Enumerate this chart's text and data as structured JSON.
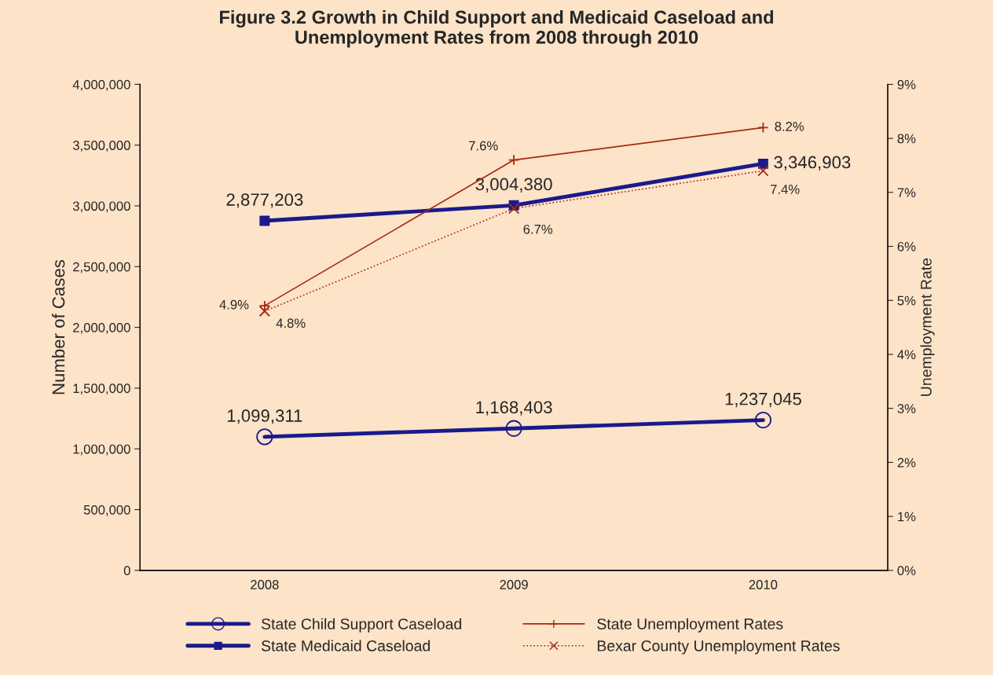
{
  "chart_data": {
    "type": "line",
    "title": "Figure 3.2 Growth in Child Support and Medicaid Caseload and\nUnemployment Rates from 2008 through 2010",
    "ylabel": "Number of Cases",
    "y2label": "Unemployment Rate",
    "categories": [
      "2008",
      "2009",
      "2010"
    ],
    "series": [
      {
        "name": "State Child Support Caseload",
        "color": "#1a1a8c",
        "marker": "circle",
        "values": [
          1099311,
          1168403,
          1237045
        ],
        "value_labels": [
          "1,099,311",
          "1,168,403",
          "1,237,045"
        ]
      },
      {
        "name": "State Medicaid Caseload",
        "color": "#1a1a8c",
        "marker": "square",
        "values": [
          2877203,
          3004380,
          3346903
        ],
        "value_labels": [
          "2,877,203",
          "3,004,380",
          "3,346,903"
        ]
      },
      {
        "name": "State Unemployment Rates",
        "color": "#a52a10",
        "marker": "plus",
        "axis": "y2",
        "values": [
          4.9,
          7.6,
          8.2
        ],
        "value_labels": [
          "4.9%",
          "7.6%",
          "8.2%"
        ]
      },
      {
        "name": "Bexar County Unemployment Rates",
        "color": "#a52a10",
        "marker": "cross",
        "line_style": "dotted",
        "axis": "y2",
        "values": [
          4.8,
          6.7,
          7.4
        ],
        "value_labels": [
          "4.8%",
          "6.7%",
          "7.4%"
        ]
      }
    ],
    "ylim": [
      0,
      4000000
    ],
    "yticks": [
      0,
      {
        "value": 500000,
        "label": "500,000"
      },
      {
        "value": 1000000,
        "label": "1,000,000"
      },
      {
        "value": 1500000,
        "label": "1,500,000"
      },
      {
        "value": 2000000,
        "label": "2,000,000"
      },
      {
        "value": 2500000,
        "label": "2,500,000"
      },
      {
        "value": 3000000,
        "label": "3,000,000"
      },
      {
        "value": 3500000,
        "label": "3,500,000"
      },
      {
        "value": 4000000,
        "label": "4,000,000"
      }
    ],
    "y2lim": [
      0,
      9
    ],
    "y2ticks": [
      {
        "value": 0,
        "label": "0%"
      },
      {
        "value": 1,
        "label": "1%"
      },
      {
        "value": 2,
        "label": "2%"
      },
      {
        "value": 3,
        "label": "3%"
      },
      {
        "value": 4,
        "label": "4%"
      },
      {
        "value": 5,
        "label": "5%"
      },
      {
        "value": 6,
        "label": "6%"
      },
      {
        "value": 7,
        "label": "7%"
      },
      {
        "value": 8,
        "label": "8%"
      },
      {
        "value": 9,
        "label": "9%"
      }
    ],
    "grid": false,
    "legend": "bottom"
  }
}
